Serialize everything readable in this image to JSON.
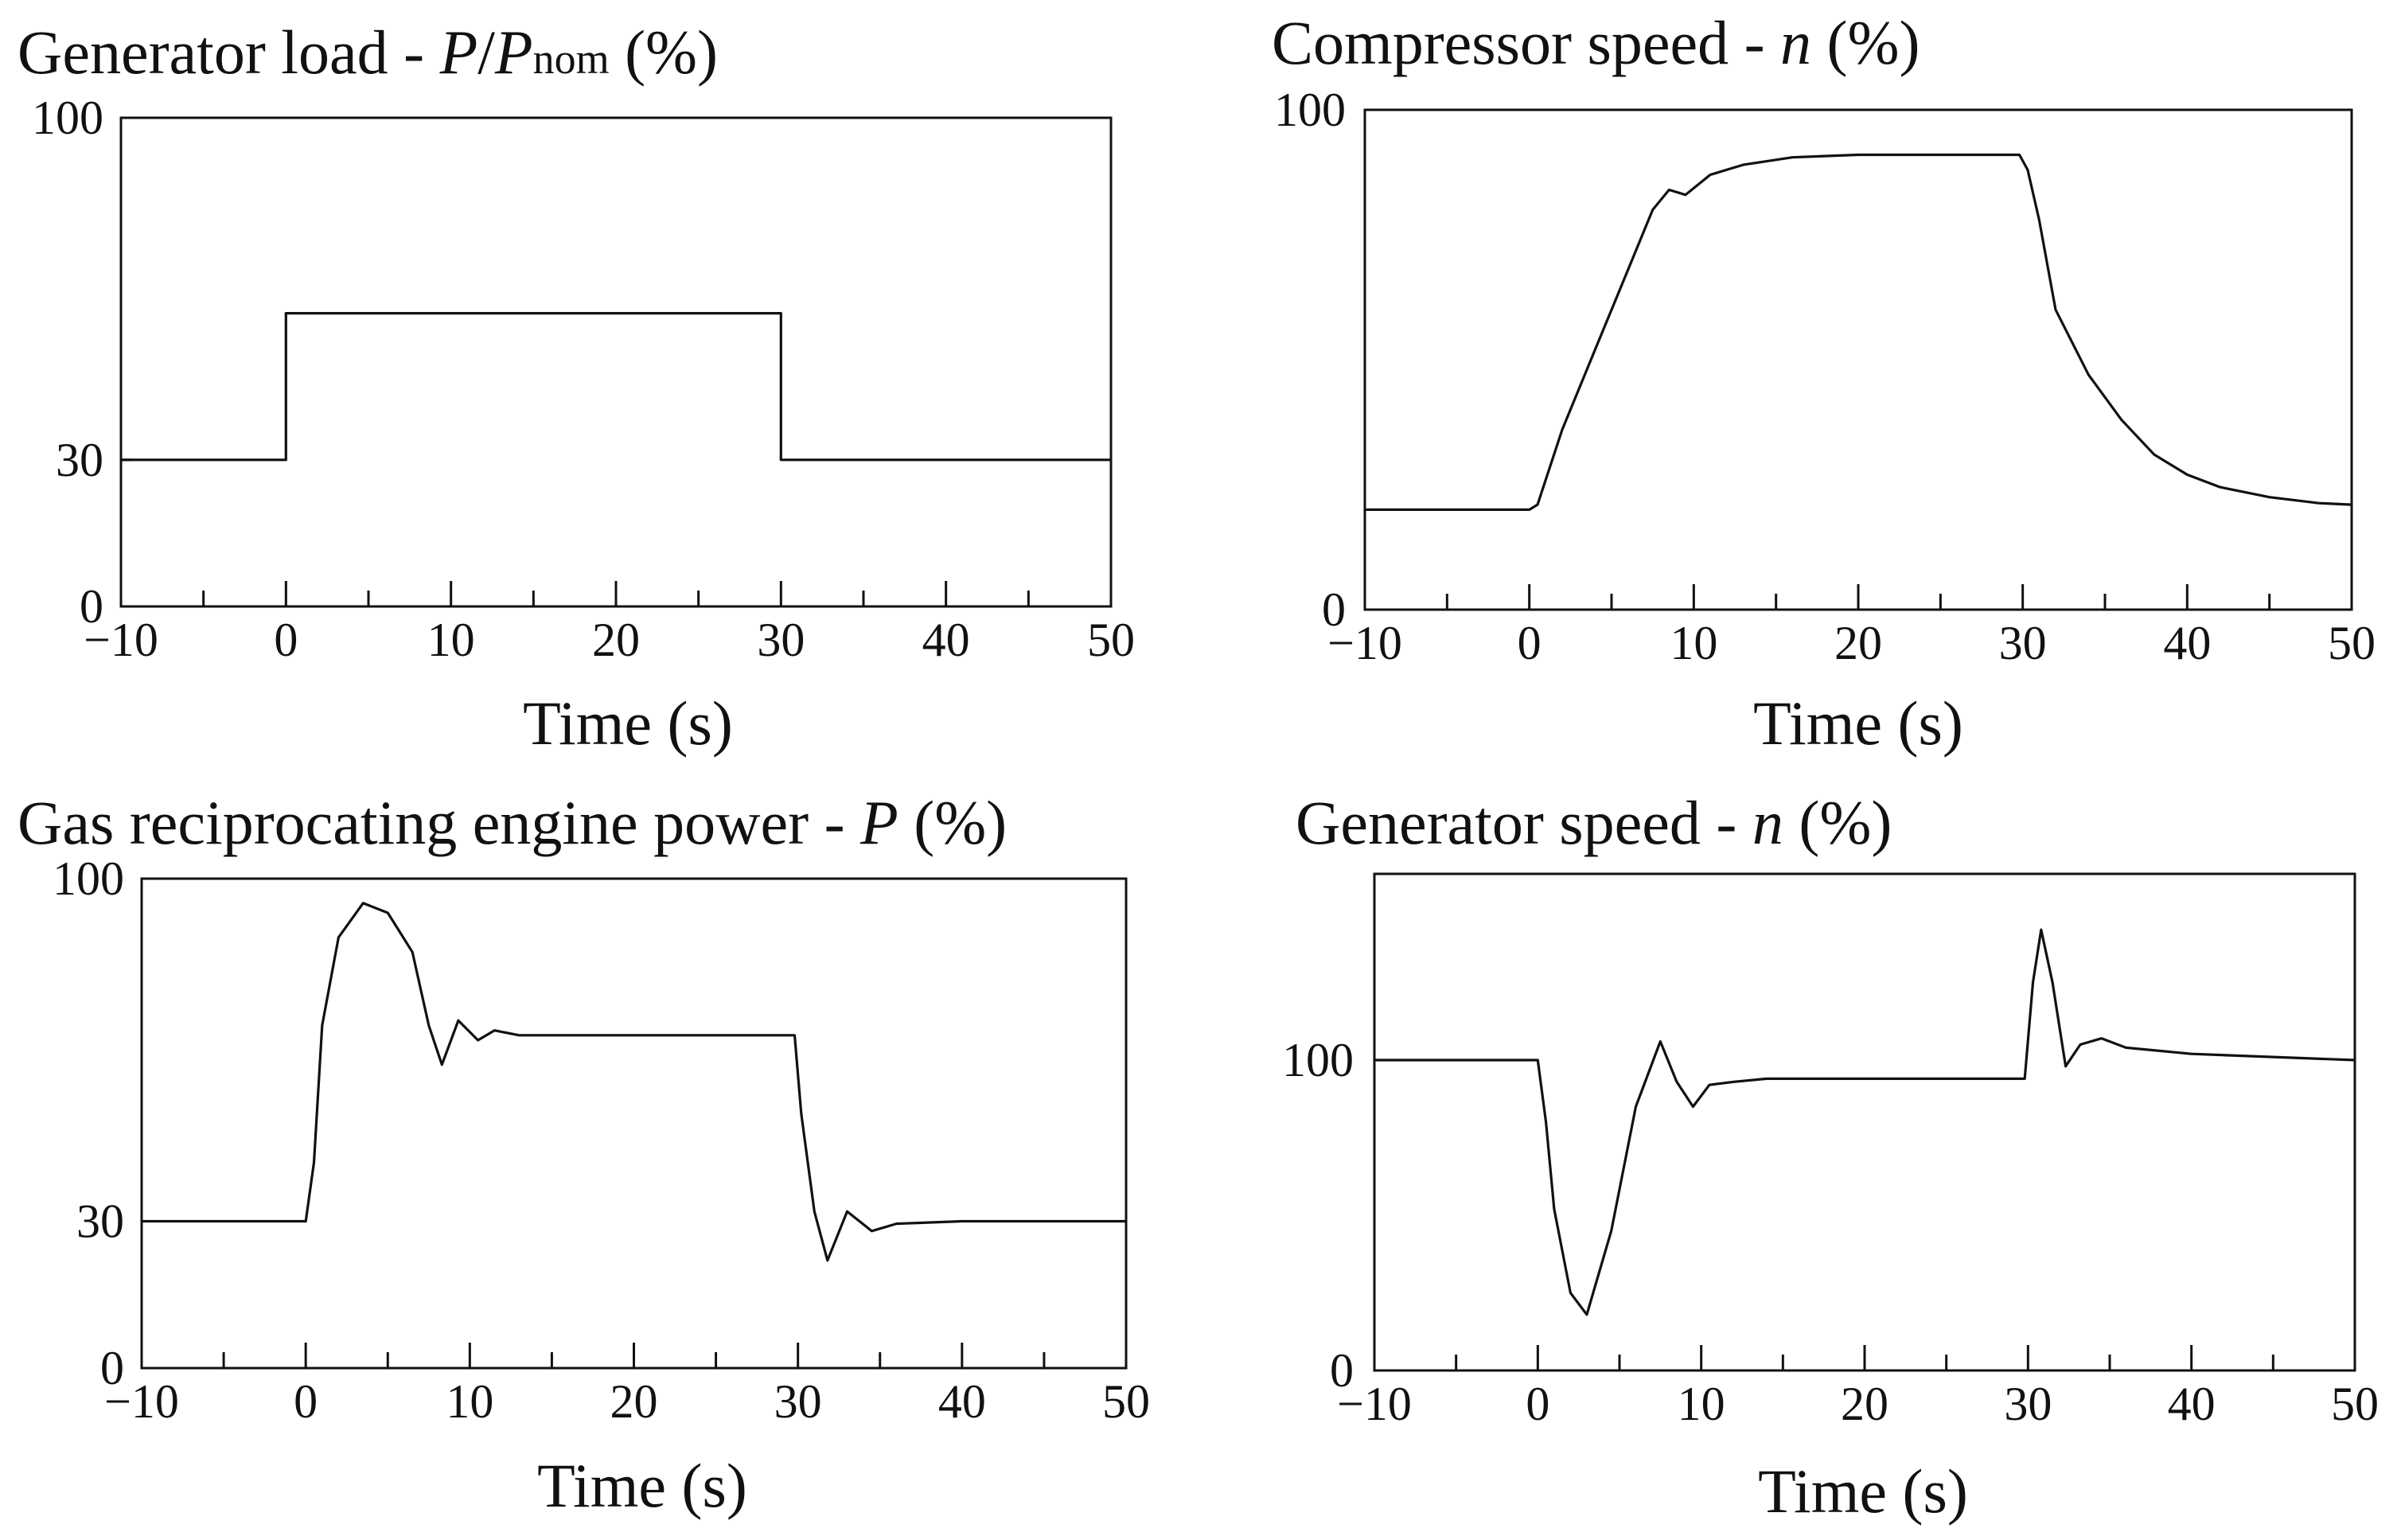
{
  "chart_data": [
    {
      "type": "line",
      "title": "Generator load - P/Pnom (%)",
      "title_parts": {
        "pre": "Generator load - ",
        "v1": "P",
        "slash": "/",
        "v2": "P",
        "sub": "nom",
        "post": " (%)"
      },
      "xlabel": "Time (s)",
      "ylabel": "",
      "xlim": [
        -10,
        50
      ],
      "ylim": [
        0,
        100
      ],
      "x_ticks": [
        -10,
        0,
        10,
        20,
        30,
        40,
        50
      ],
      "x_tick_labels": [
        "−10",
        "0",
        "10",
        "20",
        "30",
        "40",
        "50"
      ],
      "y_ticks": [
        0,
        30,
        100
      ],
      "y_tick_labels": [
        "0",
        "30",
        "100"
      ],
      "series": [
        {
          "name": "Generator load",
          "x": [
            -10,
            0,
            0,
            30,
            30,
            50
          ],
          "y": [
            30,
            30,
            60,
            60,
            30,
            30
          ]
        }
      ]
    },
    {
      "type": "line",
      "title": "Compressor speed - n (%)",
      "title_parts": {
        "pre": "Compressor speed - ",
        "v1": "n",
        "post": " (%)"
      },
      "xlabel": "Time (s)",
      "ylabel": "",
      "xlim": [
        -10,
        50
      ],
      "ylim": [
        0,
        100
      ],
      "x_ticks": [
        -10,
        0,
        10,
        20,
        30,
        40,
        50
      ],
      "x_tick_labels": [
        "−10",
        "0",
        "10",
        "20",
        "30",
        "40",
        "50"
      ],
      "y_ticks": [
        0,
        100
      ],
      "y_tick_labels": [
        "0",
        "100"
      ],
      "series": [
        {
          "name": "Compressor speed",
          "x": [
            -10,
            0,
            0.5,
            2,
            4,
            6,
            7.5,
            8.5,
            9.5,
            11,
            13,
            16,
            20,
            25,
            29.8,
            30.3,
            31,
            32,
            34,
            36,
            38,
            40,
            42,
            45,
            48,
            50
          ],
          "y": [
            20,
            20,
            21,
            36,
            52,
            68,
            80,
            84,
            83,
            87,
            89,
            90.5,
            91,
            91,
            91,
            88,
            78,
            60,
            47,
            38,
            31,
            27,
            24.5,
            22.5,
            21.3,
            21
          ]
        }
      ]
    },
    {
      "type": "line",
      "title": "Gas reciprocating engine power - P (%)",
      "title_parts": {
        "pre": "Gas reciprocating engine power - ",
        "v1": "P",
        "post": " (%)"
      },
      "xlabel": "Time (s)",
      "ylabel": "",
      "xlim": [
        -10,
        50
      ],
      "ylim": [
        0,
        100
      ],
      "x_ticks": [
        -10,
        0,
        10,
        20,
        30,
        40,
        50
      ],
      "x_tick_labels": [
        "−10",
        "0",
        "10",
        "20",
        "30",
        "40",
        "50"
      ],
      "y_ticks": [
        0,
        30,
        100
      ],
      "y_tick_labels": [
        "0",
        "30",
        "100"
      ],
      "series": [
        {
          "name": "Engine power",
          "x": [
            -10,
            0,
            0.5,
            1,
            2,
            3.5,
            5,
            6.5,
            7.5,
            8.3,
            9.3,
            10.5,
            11.5,
            13,
            20,
            29.8,
            30.2,
            31,
            31.8,
            33,
            34.5,
            36,
            40,
            50
          ],
          "y": [
            30,
            30,
            42,
            70,
            88,
            95,
            93,
            85,
            70,
            62,
            71,
            67,
            69,
            68,
            68,
            68,
            52,
            32,
            22,
            32,
            28,
            29.5,
            30,
            30
          ]
        }
      ]
    },
    {
      "type": "line",
      "title": "Generator speed - n (%)",
      "title_parts": {
        "pre": "Generator speed - ",
        "v1": "n",
        "post": " (%)"
      },
      "xlabel": "Time (s)",
      "ylabel": "",
      "xlim": [
        -10,
        50
      ],
      "ylim": [
        0,
        160
      ],
      "x_ticks": [
        -10,
        0,
        10,
        20,
        30,
        40,
        50
      ],
      "x_tick_labels": [
        "−10",
        "0",
        "10",
        "20",
        "30",
        "40",
        "50"
      ],
      "y_ticks": [
        0,
        100
      ],
      "y_tick_labels": [
        "0",
        "100"
      ],
      "series": [
        {
          "name": "Generator speed",
          "x": [
            -10,
            0,
            0.5,
            1,
            2,
            3,
            4.5,
            6,
            7.5,
            8.5,
            9.5,
            10.5,
            12,
            14,
            20,
            29.8,
            30.3,
            30.8,
            31.5,
            32.3,
            33.2,
            34.5,
            36,
            40,
            45,
            50
          ],
          "y": [
            100,
            100,
            80,
            52,
            25,
            18,
            45,
            85,
            106,
            93,
            85,
            92,
            93,
            94,
            94,
            94,
            125,
            142,
            125,
            98,
            105,
            107,
            104,
            102,
            101,
            100
          ]
        }
      ]
    }
  ]
}
